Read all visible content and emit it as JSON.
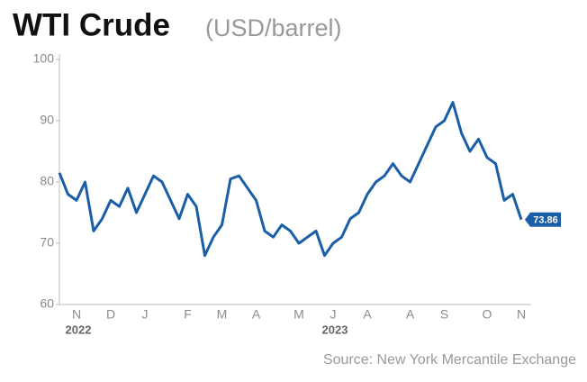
{
  "chart_data": {
    "type": "line",
    "title": "WTI Crude",
    "subtitle": "(USD/barrel)",
    "source": "Source: New York Mercantile Exchange",
    "categories": [
      null,
      null,
      "N",
      null,
      null,
      null,
      "D",
      null,
      null,
      null,
      "J",
      null,
      null,
      null,
      null,
      "F",
      null,
      null,
      null,
      "M",
      null,
      null,
      null,
      "A",
      null,
      null,
      null,
      null,
      "M",
      null,
      null,
      null,
      "J",
      null,
      null,
      null,
      "A",
      null,
      null,
      null,
      null,
      "A",
      null,
      null,
      null,
      "S",
      null,
      null,
      null,
      null,
      "O",
      null,
      null,
      null,
      "N"
    ],
    "year_labels": [
      null,
      null,
      "2022",
      null,
      null,
      null,
      null,
      null,
      null,
      null,
      null,
      null,
      null,
      null,
      null,
      null,
      null,
      null,
      null,
      null,
      null,
      null,
      null,
      null,
      null,
      null,
      null,
      null,
      null,
      null,
      null,
      null,
      "2023",
      null,
      null,
      null,
      null,
      null,
      null,
      null,
      null,
      null,
      null,
      null,
      null,
      null,
      null,
      null,
      null,
      null,
      null,
      null,
      null,
      null,
      null
    ],
    "series": [
      {
        "name": "WTI Crude",
        "color": "#1a5ea8",
        "values": [
          81.5,
          78,
          77,
          80,
          72,
          74,
          77,
          76,
          79,
          75,
          78,
          81,
          80,
          77,
          74,
          78,
          76,
          68,
          71,
          73,
          80.5,
          81,
          79,
          77,
          72,
          71,
          73,
          72,
          70,
          71,
          72,
          68,
          70,
          71,
          74,
          75,
          78,
          80,
          81,
          83,
          81,
          80,
          83,
          86,
          89,
          90,
          93,
          88,
          85,
          87,
          84,
          83,
          77,
          78,
          73.86
        ]
      }
    ],
    "ylim": [
      60,
      100
    ],
    "yticks": [
      60,
      70,
      80,
      90,
      100
    ],
    "grid": false
  }
}
